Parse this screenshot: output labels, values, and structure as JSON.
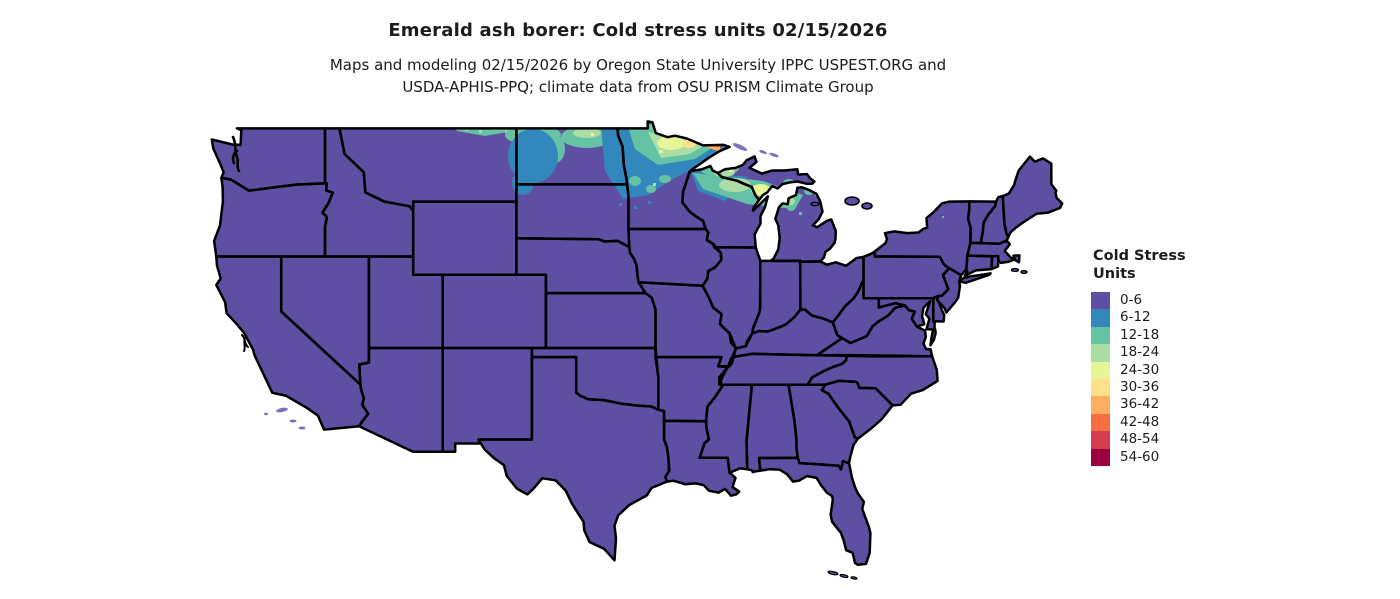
{
  "header": {
    "title": "Emerald ash borer: Cold stress units 02/15/2026",
    "subtitle1": "Maps and modeling 02/15/2026 by Oregon State University IPPC USPEST.ORG and",
    "subtitle2": "USDA-APHIS-PPQ; climate data from OSU PRISM Climate Group"
  },
  "legend": {
    "title1": "Cold Stress",
    "title2": "Units",
    "items": [
      {
        "label": "0-6",
        "color": "#5e4fa2"
      },
      {
        "label": "6-12",
        "color": "#3288bd"
      },
      {
        "label": "12-18",
        "color": "#66c2a5"
      },
      {
        "label": "18-24",
        "color": "#abdda4"
      },
      {
        "label": "24-30",
        "color": "#e6f598"
      },
      {
        "label": "30-36",
        "color": "#fee08b"
      },
      {
        "label": "36-42",
        "color": "#fdae61"
      },
      {
        "label": "42-48",
        "color": "#f46d43"
      },
      {
        "label": "48-54",
        "color": "#d53e4f"
      },
      {
        "label": "54-60",
        "color": "#9e0142"
      }
    ]
  },
  "map": {
    "region": "Contiguous United States",
    "base_fill": "#5e4fa2",
    "border_color": "#000000",
    "island_fill": "#7d72b8",
    "background": "#ffffff"
  }
}
